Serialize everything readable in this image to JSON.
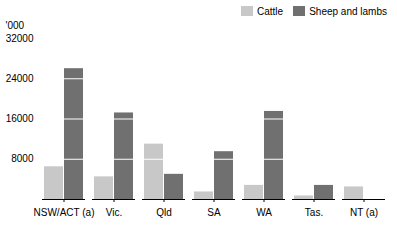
{
  "chart_data": {
    "type": "bar",
    "categories": [
      "NSW/ACT (a)",
      "Vic.",
      "Qld",
      "SA",
      "WA",
      "Tas.",
      "NT (a)"
    ],
    "series": [
      {
        "name": "Cattle",
        "color": "#c8c8c8",
        "values": [
          6500,
          4500,
          11000,
          1500,
          2800,
          700,
          2500
        ]
      },
      {
        "name": "Sheep and lambs",
        "color": "#707070",
        "values": [
          26000,
          17200,
          5000,
          9500,
          17500,
          2800,
          0
        ]
      }
    ],
    "ylabel": "'000",
    "ylim": [
      0,
      32000
    ],
    "yticks": [
      8000,
      16000,
      24000,
      32000
    ],
    "legend": "upper right"
  }
}
